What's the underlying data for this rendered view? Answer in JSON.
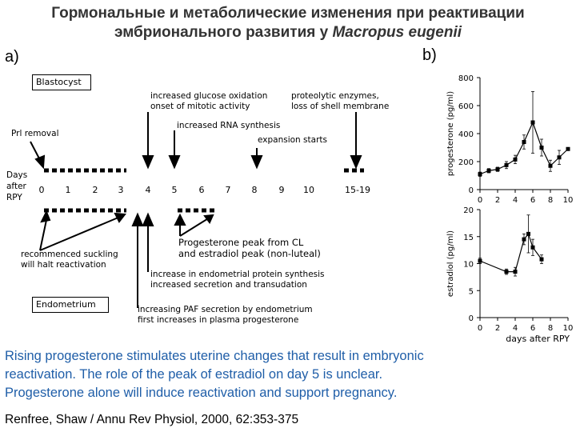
{
  "title_line1": "Гормональные и метаболические изменения при реактивации",
  "title_line2_prefix": "эмбрионального развития у ",
  "title_line2_species": "Macropus eugenii",
  "panel_a": "a)",
  "panel_b": "b)",
  "diagram": {
    "blastocyst": "Blastocyst",
    "endometrium": "Endometrium",
    "prl_removal": "Prl removal",
    "days_after_rpy": [
      "Days",
      "after",
      "RPY"
    ],
    "day_labels": [
      "0",
      "1",
      "2",
      "3",
      "4",
      "5",
      "6",
      "7",
      "8",
      "9",
      "10",
      "15-19"
    ],
    "ann_glucose": [
      "increased glucose oxidation",
      "onset of mitotic activity"
    ],
    "ann_proteolytic": [
      "proteolytic enzymes,",
      "loss of shell membrane"
    ],
    "ann_rna": "increased RNA synthesis",
    "ann_expansion": "expansion starts",
    "ann_suckling": [
      "recommenced suckling",
      "will halt reactivation"
    ],
    "ann_peak": [
      "Progesterone peak from CL",
      "and estradiol peak (non-luteal)"
    ],
    "ann_protein": [
      "increase in endometrial protein synthesis",
      "increased secretion and transudation"
    ],
    "ann_paf": [
      "increasing PAF secretion by endometrium",
      "first increases in plasma progesterone"
    ]
  },
  "chart_data": [
    {
      "type": "line",
      "ylabel": "progesterone (pg/ml)",
      "ylim": [
        0,
        800
      ],
      "yticks": [
        0,
        200,
        400,
        600,
        800
      ],
      "xlim": [
        0,
        10
      ],
      "xticks": [
        0,
        2,
        4,
        6,
        8,
        10
      ],
      "x": [
        0,
        1,
        2,
        3,
        4,
        5,
        6,
        7,
        8,
        9,
        10
      ],
      "y": [
        110,
        135,
        145,
        175,
        215,
        340,
        480,
        300,
        170,
        230,
        290
      ],
      "err": [
        15,
        15,
        15,
        25,
        30,
        50,
        220,
        60,
        40,
        50,
        0
      ]
    },
    {
      "type": "line",
      "ylabel": "estradiol (pg/ml)",
      "xlabel": "days after RPY",
      "ylim": [
        0,
        20
      ],
      "yticks": [
        0,
        5,
        10,
        15,
        20
      ],
      "xlim": [
        0,
        10
      ],
      "xticks": [
        0,
        2,
        4,
        6,
        8,
        10
      ],
      "x": [
        0,
        3,
        4,
        5,
        5.5,
        6,
        7
      ],
      "y": [
        10.5,
        8.5,
        8.5,
        14.5,
        15.5,
        13,
        10.8
      ],
      "err": [
        0.5,
        0.5,
        0.8,
        1.0,
        3.5,
        1.5,
        0.8
      ]
    }
  ],
  "caption": [
    "Rising progesterone stimulates uterine changes that result in embryonic",
    "reactivation. The role of the peak of estradiol on day 5 is unclear.",
    "Progesterone alone will induce reactivation and support pregnancy."
  ],
  "reference": "Renfree, Shaw / Annu Rev Physiol, 2000, 62:353-375"
}
